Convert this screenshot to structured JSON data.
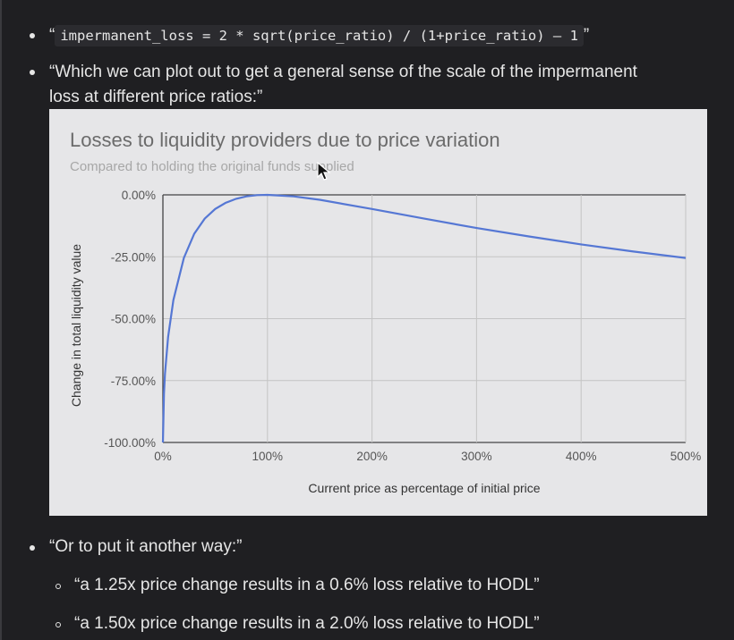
{
  "bullets": {
    "formula": {
      "open_quote": "“",
      "code": "impermanent_loss = 2 * sqrt(price_ratio) / (1+price_ratio) — 1",
      "close_quote": "”"
    },
    "plot_intro_line1": "“Which we can plot out to get a general sense of the scale of the impermanent",
    "plot_intro_line2": "loss at different price ratios:”",
    "another_way": "“Or to put it another way:”",
    "sub_items": [
      "“a 1.25x price change results in a 0.6% loss relative to HODL”",
      "“a 1.50x price change results in a 2.0% loss relative to HODL”"
    ]
  },
  "chart_data": {
    "type": "line",
    "title": "Losses to liquidity providers due to price variation",
    "subtitle": "Compared to holding the original funds supplied",
    "xlabel": "Current price as percentage of initial price",
    "ylabel": "Change in total liquidity value",
    "xlim": [
      0,
      500
    ],
    "ylim": [
      -100,
      0
    ],
    "x_ticks": [
      "0%",
      "100%",
      "200%",
      "300%",
      "400%",
      "500%"
    ],
    "y_ticks": [
      "0.00%",
      "-25.00%",
      "-50.00%",
      "-75.00%",
      "-100.00%"
    ],
    "grid": true,
    "legend": "none",
    "series_color": "#5577d4",
    "x": [
      0,
      1,
      2,
      5,
      10,
      20,
      30,
      40,
      50,
      60,
      70,
      80,
      90,
      100,
      125,
      150,
      200,
      250,
      300,
      350,
      400,
      450,
      500
    ],
    "y": [
      -100,
      -80.2,
      -72.3,
      -57.4,
      -42.5,
      -25.5,
      -15.7,
      -9.6,
      -5.7,
      -3.2,
      -1.6,
      -0.6,
      -0.1,
      0,
      -0.6,
      -2.0,
      -5.7,
      -9.6,
      -13.4,
      -16.8,
      -20.0,
      -22.9,
      -25.5
    ]
  }
}
